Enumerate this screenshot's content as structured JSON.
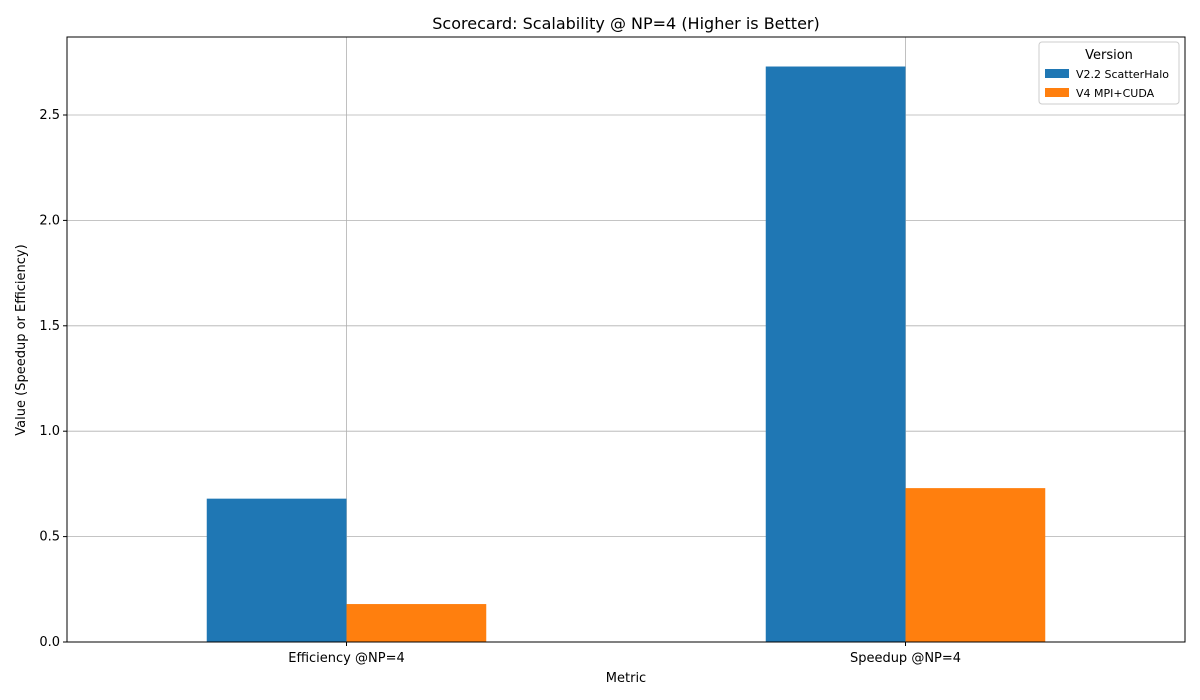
{
  "chart_data": {
    "type": "bar",
    "title": "Scorecard: Scalability @ NP=4 (Higher is Better)",
    "xlabel": "Metric",
    "ylabel": "Value (Speedup or Efficiency)",
    "categories": [
      "Efficiency @NP=4",
      "Speedup @NP=4"
    ],
    "series": [
      {
        "name": "V2.2 ScatterHalo",
        "values": [
          0.68,
          2.73
        ],
        "color": "#1f77b4"
      },
      {
        "name": "V4 MPI+CUDA",
        "values": [
          0.18,
          0.73
        ],
        "color": "#ff7f0e"
      }
    ],
    "ylim": [
      0,
      2.87
    ],
    "yticks": [
      0.0,
      0.5,
      1.0,
      1.5,
      2.0,
      2.5
    ],
    "ytick_labels": [
      "0.0",
      "0.5",
      "1.0",
      "1.5",
      "2.0",
      "2.5"
    ],
    "grid": true,
    "legend": {
      "title": "Version",
      "placement": "top-right"
    }
  }
}
